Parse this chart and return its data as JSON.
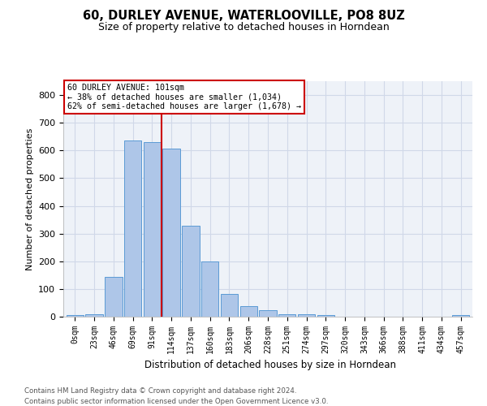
{
  "title": "60, DURLEY AVENUE, WATERLOOVILLE, PO8 8UZ",
  "subtitle": "Size of property relative to detached houses in Horndean",
  "xlabel": "Distribution of detached houses by size in Horndean",
  "ylabel": "Number of detached properties",
  "bar_categories": [
    "0sqm",
    "23sqm",
    "46sqm",
    "69sqm",
    "91sqm",
    "114sqm",
    "137sqm",
    "160sqm",
    "183sqm",
    "206sqm",
    "228sqm",
    "251sqm",
    "274sqm",
    "297sqm",
    "320sqm",
    "343sqm",
    "366sqm",
    "388sqm",
    "411sqm",
    "434sqm",
    "457sqm"
  ],
  "bar_values": [
    5,
    10,
    145,
    635,
    630,
    608,
    328,
    200,
    83,
    38,
    22,
    10,
    10,
    7,
    0,
    0,
    0,
    0,
    0,
    0,
    5
  ],
  "bar_color": "#aec6e8",
  "bar_edge_color": "#5b9bd5",
  "annotation_text_line1": "60 DURLEY AVENUE: 101sqm",
  "annotation_text_line2": "← 38% of detached houses are smaller (1,034)",
  "annotation_text_line3": "62% of semi-detached houses are larger (1,678) →",
  "annotation_box_color": "#ffffff",
  "annotation_border_color": "#cc0000",
  "vline_color": "#cc0000",
  "vline_x": 4.5,
  "grid_color": "#d0d8e8",
  "background_color": "#eef2f8",
  "ylim": [
    0,
    850
  ],
  "yticks": [
    0,
    100,
    200,
    300,
    400,
    500,
    600,
    700,
    800
  ],
  "footer_line1": "Contains HM Land Registry data © Crown copyright and database right 2024.",
  "footer_line2": "Contains public sector information licensed under the Open Government Licence v3.0."
}
